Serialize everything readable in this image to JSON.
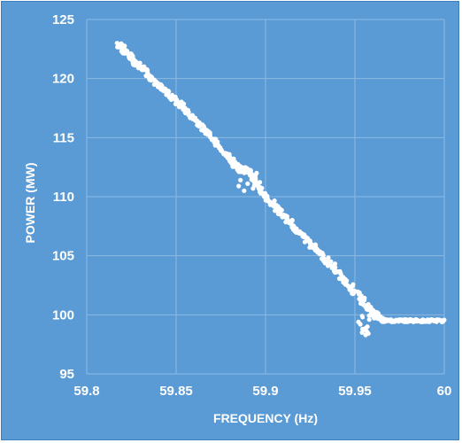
{
  "chart_data": {
    "type": "scatter",
    "title": "",
    "xlabel": "FREQUENCY (Hz)",
    "ylabel": "POWER (MW)",
    "xlim": [
      59.8,
      60
    ],
    "ylim": [
      95,
      125
    ],
    "xticks": [
      "59.8",
      "59.85",
      "59.9",
      "59.95",
      "60"
    ],
    "yticks": [
      "95",
      "100",
      "105",
      "110",
      "115",
      "120",
      "125"
    ],
    "grid": true,
    "legend": "none",
    "marker_color": "#ffffff",
    "background_color": "#5b9bd5",
    "gridline_color": "#8db9e2",
    "series": [
      {
        "x": [
          59.818,
          59.82,
          59.823,
          59.826,
          59.83,
          59.835,
          59.84,
          59.845,
          59.85,
          59.855,
          59.86,
          59.865,
          59.87,
          59.875,
          59.88,
          59.884,
          59.887,
          59.89,
          59.893,
          59.896,
          59.9,
          59.905,
          59.91,
          59.915,
          59.92,
          59.925,
          59.93,
          59.935,
          59.94,
          59.945,
          59.95,
          59.955,
          59.96,
          59.962,
          59.965,
          59.97,
          59.975,
          59.98,
          59.985,
          59.99,
          59.995,
          60.0,
          59.953,
          59.955,
          59.957,
          59.952,
          59.954,
          59.956,
          59.958,
          59.885,
          59.888,
          59.893,
          59.895,
          59.886,
          59.89
        ],
        "y": [
          122.9,
          122.6,
          122.1,
          121.6,
          121.0,
          120.3,
          119.5,
          118.8,
          118.1,
          117.4,
          116.6,
          115.8,
          115.0,
          114.1,
          113.3,
          112.5,
          112.3,
          112.2,
          111.6,
          110.9,
          110.0,
          109.2,
          108.4,
          107.6,
          106.8,
          106.0,
          105.3,
          104.5,
          103.7,
          102.8,
          101.9,
          101.1,
          100.2,
          99.9,
          99.5,
          99.5,
          99.5,
          99.5,
          99.5,
          99.5,
          99.5,
          99.5,
          99.2,
          98.8,
          99.0,
          99.4,
          98.5,
          98.3,
          99.6,
          110.9,
          110.5,
          110.7,
          112.0,
          111.4,
          111.1
        ]
      }
    ]
  }
}
